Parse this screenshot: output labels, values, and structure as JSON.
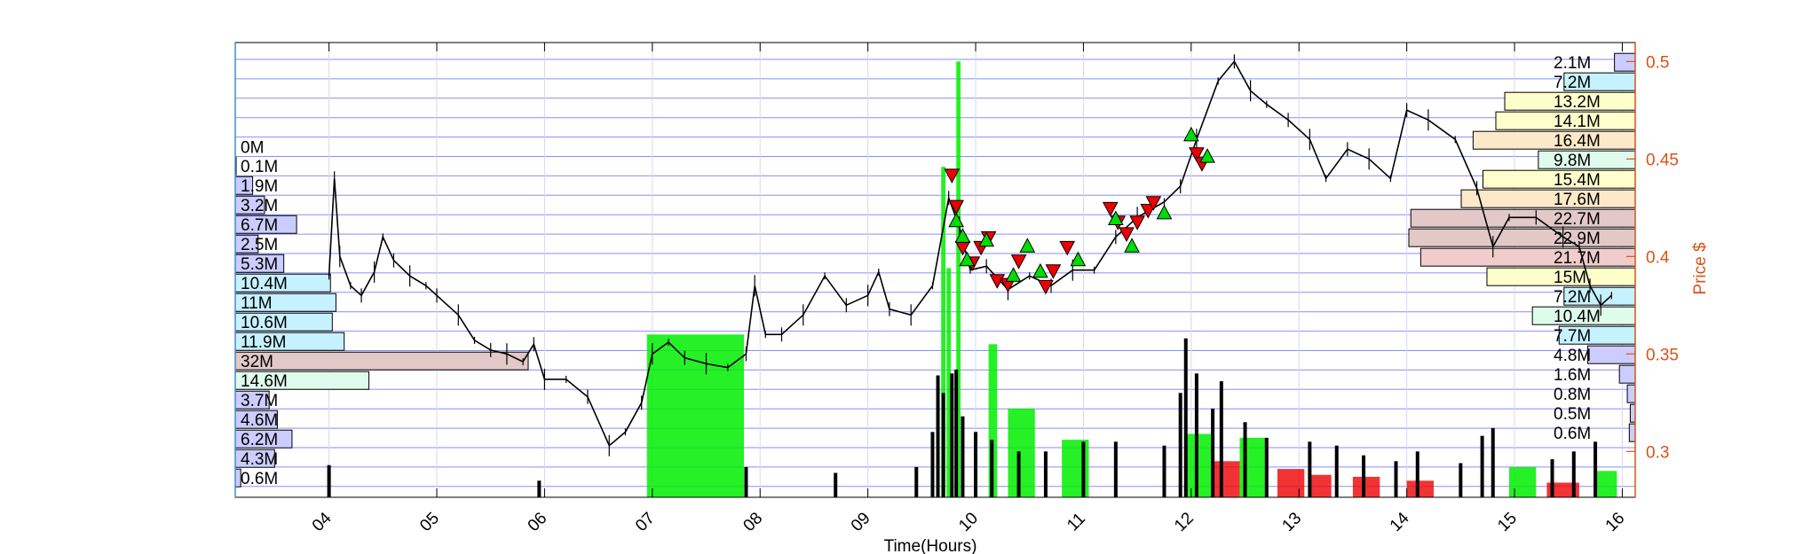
{
  "chart_data": {
    "type": "candlestick",
    "xlabel": "Time(Hours)",
    "ylabel": "Price $",
    "x_ticks": [
      "04",
      "05",
      "06",
      "07",
      "08",
      "09",
      "10",
      "11",
      "12",
      "13",
      "14",
      "15",
      "16"
    ],
    "xlim": [
      3.13,
      16.12
    ],
    "ylim": [
      0.2765,
      0.5097
    ],
    "y_ticks": [
      "0.3",
      "0.35",
      "0.4",
      "0.45",
      "0.5"
    ],
    "grid": "horizontal",
    "colors": {
      "axis_right": "#d95319",
      "grid": "#8b8bff",
      "volume_up": "#00ee00",
      "volume_down": "#ee0000",
      "buy_marker": "#00dd00",
      "sell_marker": "#ee0000"
    },
    "price_path": [
      [
        4.0,
        0.39
      ],
      [
        4.05,
        0.44
      ],
      [
        4.1,
        0.4
      ],
      [
        4.2,
        0.385
      ],
      [
        4.3,
        0.38
      ],
      [
        4.42,
        0.392
      ],
      [
        4.5,
        0.41
      ],
      [
        4.6,
        0.398
      ],
      [
        4.75,
        0.39
      ],
      [
        4.9,
        0.385
      ],
      [
        5.0,
        0.38
      ],
      [
        5.2,
        0.37
      ],
      [
        5.35,
        0.357
      ],
      [
        5.5,
        0.352
      ],
      [
        5.65,
        0.35
      ],
      [
        5.8,
        0.346
      ],
      [
        5.9,
        0.355
      ],
      [
        6.0,
        0.337
      ],
      [
        6.2,
        0.337
      ],
      [
        6.4,
        0.328
      ],
      [
        6.6,
        0.303
      ],
      [
        6.75,
        0.31
      ],
      [
        6.9,
        0.325
      ],
      [
        7.0,
        0.35
      ],
      [
        7.15,
        0.356
      ],
      [
        7.3,
        0.348
      ],
      [
        7.5,
        0.345
      ],
      [
        7.7,
        0.343
      ],
      [
        7.87,
        0.35
      ],
      [
        7.95,
        0.385
      ],
      [
        8.05,
        0.36
      ],
      [
        8.2,
        0.36
      ],
      [
        8.4,
        0.37
      ],
      [
        8.6,
        0.39
      ],
      [
        8.8,
        0.375
      ],
      [
        9.0,
        0.38
      ],
      [
        9.1,
        0.392
      ],
      [
        9.2,
        0.373
      ],
      [
        9.4,
        0.37
      ],
      [
        9.6,
        0.385
      ],
      [
        9.75,
        0.43
      ],
      [
        9.85,
        0.415
      ],
      [
        9.95,
        0.393
      ],
      [
        10.1,
        0.395
      ],
      [
        10.3,
        0.383
      ],
      [
        10.5,
        0.39
      ],
      [
        10.7,
        0.385
      ],
      [
        10.9,
        0.393
      ],
      [
        11.1,
        0.393
      ],
      [
        11.3,
        0.41
      ],
      [
        11.5,
        0.42
      ],
      [
        11.75,
        0.428
      ],
      [
        11.9,
        0.436
      ],
      [
        12.05,
        0.46
      ],
      [
        12.25,
        0.49
      ],
      [
        12.4,
        0.5
      ],
      [
        12.55,
        0.485
      ],
      [
        12.7,
        0.478
      ],
      [
        12.9,
        0.47
      ],
      [
        13.1,
        0.46
      ],
      [
        13.25,
        0.44
      ],
      [
        13.45,
        0.455
      ],
      [
        13.65,
        0.45
      ],
      [
        13.85,
        0.44
      ],
      [
        14.0,
        0.475
      ],
      [
        14.2,
        0.47
      ],
      [
        14.45,
        0.46
      ],
      [
        14.65,
        0.435
      ],
      [
        14.8,
        0.405
      ],
      [
        14.95,
        0.42
      ],
      [
        15.2,
        0.42
      ],
      [
        15.45,
        0.41
      ],
      [
        15.6,
        0.405
      ],
      [
        15.7,
        0.385
      ],
      [
        15.8,
        0.375
      ],
      [
        15.9,
        0.38
      ]
    ],
    "volume_bars": [
      {
        "x": 6.95,
        "x2": 7.85,
        "price": 0.36,
        "dir": "up"
      },
      {
        "x": 9.68,
        "x2": 9.72,
        "price": 0.446,
        "dir": "up"
      },
      {
        "x": 9.73,
        "x2": 9.77,
        "price": 0.394,
        "dir": "up"
      },
      {
        "x": 9.82,
        "x2": 9.86,
        "price": 0.5,
        "dir": "up"
      },
      {
        "x": 10.12,
        "x2": 10.2,
        "price": 0.355,
        "dir": "up"
      },
      {
        "x": 10.3,
        "x2": 10.55,
        "price": 0.322,
        "dir": "up"
      },
      {
        "x": 10.8,
        "x2": 11.05,
        "price": 0.306,
        "dir": "up"
      },
      {
        "x": 11.95,
        "x2": 12.2,
        "price": 0.309,
        "dir": "up"
      },
      {
        "x": 12.2,
        "x2": 12.45,
        "price": 0.295,
        "dir": "down"
      },
      {
        "x": 12.45,
        "x2": 12.7,
        "price": 0.307,
        "dir": "up"
      },
      {
        "x": 12.8,
        "x2": 13.05,
        "price": 0.291,
        "dir": "down"
      },
      {
        "x": 13.1,
        "x2": 13.3,
        "price": 0.288,
        "dir": "down"
      },
      {
        "x": 13.5,
        "x2": 13.75,
        "price": 0.287,
        "dir": "down"
      },
      {
        "x": 14.0,
        "x2": 14.25,
        "price": 0.285,
        "dir": "down"
      },
      {
        "x": 14.95,
        "x2": 15.2,
        "price": 0.292,
        "dir": "up"
      },
      {
        "x": 15.3,
        "x2": 15.6,
        "price": 0.284,
        "dir": "down"
      },
      {
        "x": 15.75,
        "x2": 15.95,
        "price": 0.29,
        "dir": "up"
      }
    ],
    "spikes": [
      [
        4.0,
        0.293
      ],
      [
        5.95,
        0.285
      ],
      [
        7.87,
        0.292
      ],
      [
        8.7,
        0.289
      ],
      [
        9.45,
        0.292
      ],
      [
        9.6,
        0.31
      ],
      [
        9.65,
        0.339
      ],
      [
        9.7,
        0.33
      ],
      [
        9.78,
        0.34
      ],
      [
        9.82,
        0.342
      ],
      [
        9.88,
        0.318
      ],
      [
        10.0,
        0.31
      ],
      [
        10.15,
        0.306
      ],
      [
        10.4,
        0.3
      ],
      [
        10.65,
        0.3
      ],
      [
        11.0,
        0.305
      ],
      [
        11.3,
        0.305
      ],
      [
        11.75,
        0.303
      ],
      [
        11.9,
        0.33
      ],
      [
        11.95,
        0.358
      ],
      [
        12.05,
        0.34
      ],
      [
        12.2,
        0.322
      ],
      [
        12.28,
        0.336
      ],
      [
        12.5,
        0.315
      ],
      [
        12.7,
        0.307
      ],
      [
        13.1,
        0.305
      ],
      [
        13.35,
        0.303
      ],
      [
        13.6,
        0.298
      ],
      [
        13.9,
        0.295
      ],
      [
        14.1,
        0.3
      ],
      [
        14.5,
        0.294
      ],
      [
        14.7,
        0.308
      ],
      [
        14.8,
        0.312
      ],
      [
        15.35,
        0.296
      ],
      [
        15.55,
        0.3
      ],
      [
        15.75,
        0.305
      ]
    ],
    "sell_markers": [
      [
        9.78,
        0.442
      ],
      [
        9.82,
        0.426
      ],
      [
        9.88,
        0.405
      ],
      [
        9.97,
        0.397
      ],
      [
        10.05,
        0.405
      ],
      [
        10.12,
        0.41
      ],
      [
        10.2,
        0.388
      ],
      [
        10.3,
        0.386
      ],
      [
        10.4,
        0.398
      ],
      [
        10.65,
        0.385
      ],
      [
        10.72,
        0.393
      ],
      [
        10.85,
        0.405
      ],
      [
        11.25,
        0.425
      ],
      [
        11.32,
        0.418
      ],
      [
        11.4,
        0.412
      ],
      [
        11.5,
        0.418
      ],
      [
        11.6,
        0.424
      ],
      [
        11.65,
        0.428
      ],
      [
        12.05,
        0.453
      ],
      [
        12.1,
        0.448
      ]
    ],
    "buy_markers": [
      [
        9.82,
        0.418
      ],
      [
        9.88,
        0.41
      ],
      [
        9.92,
        0.398
      ],
      [
        10.1,
        0.408
      ],
      [
        10.35,
        0.39
      ],
      [
        10.48,
        0.405
      ],
      [
        10.6,
        0.392
      ],
      [
        10.95,
        0.398
      ],
      [
        11.3,
        0.419
      ],
      [
        11.45,
        0.405
      ],
      [
        11.75,
        0.422
      ],
      [
        12.0,
        0.462
      ],
      [
        12.15,
        0.451
      ]
    ],
    "volume_profile_left": [
      {
        "label": "0M",
        "value": 0,
        "price": 0.4564,
        "color": "#ccccff"
      },
      {
        "label": "0.1M",
        "value": 0.1,
        "price": 0.4464,
        "color": "#ccccff"
      },
      {
        "label": "1.9M",
        "value": 1.9,
        "price": 0.4364,
        "color": "#ccccff"
      },
      {
        "label": "3.2M",
        "value": 3.2,
        "price": 0.4264,
        "color": "#ccccff"
      },
      {
        "label": "6.7M",
        "value": 6.7,
        "price": 0.4164,
        "color": "#ccccff"
      },
      {
        "label": "2.5M",
        "value": 2.5,
        "price": 0.4064,
        "color": "#ccccff"
      },
      {
        "label": "5.3M",
        "value": 5.3,
        "price": 0.3964,
        "color": "#ccccff"
      },
      {
        "label": "10.4M",
        "value": 10.4,
        "price": 0.3864,
        "color": "#c6f2ff"
      },
      {
        "label": "11M",
        "value": 11,
        "price": 0.3764,
        "color": "#c6f2ff"
      },
      {
        "label": "10.6M",
        "value": 10.6,
        "price": 0.3664,
        "color": "#c6f2ff"
      },
      {
        "label": "11.9M",
        "value": 11.9,
        "price": 0.3564,
        "color": "#c6f2ff"
      },
      {
        "label": "32M",
        "value": 32,
        "price": 0.3464,
        "color": "#e3c8c8"
      },
      {
        "label": "14.6M",
        "value": 14.6,
        "price": 0.3364,
        "color": "#dffbec"
      },
      {
        "label": "3.7M",
        "value": 3.7,
        "price": 0.3264,
        "color": "#ccccff"
      },
      {
        "label": "4.6M",
        "value": 4.6,
        "price": 0.3164,
        "color": "#ccccff"
      },
      {
        "label": "6.2M",
        "value": 6.2,
        "price": 0.3064,
        "color": "#ccccff"
      },
      {
        "label": "4.3M",
        "value": 4.3,
        "price": 0.2964,
        "color": "#ccccff"
      },
      {
        "label": "0.6M",
        "value": 0.6,
        "price": 0.2864,
        "color": "#ccccff"
      }
    ],
    "volume_profile_right": [
      {
        "label": "2.1M",
        "value": 2.1,
        "price": 0.4996,
        "color": "#ccccff"
      },
      {
        "label": "7.2M",
        "value": 7.2,
        "price": 0.4896,
        "color": "#c6f2ff"
      },
      {
        "label": "13.2M",
        "value": 13.2,
        "price": 0.4796,
        "color": "#ffffcc"
      },
      {
        "label": "14.1M",
        "value": 14.1,
        "price": 0.4696,
        "color": "#ffffcc"
      },
      {
        "label": "16.4M",
        "value": 16.4,
        "price": 0.4596,
        "color": "#fbe9c9"
      },
      {
        "label": "9.8M",
        "value": 9.8,
        "price": 0.4496,
        "color": "#dffbec"
      },
      {
        "label": "15.4M",
        "value": 15.4,
        "price": 0.4396,
        "color": "#ffffcc"
      },
      {
        "label": "17.6M",
        "value": 17.6,
        "price": 0.4296,
        "color": "#fbe9c9"
      },
      {
        "label": "22.7M",
        "value": 22.7,
        "price": 0.4196,
        "color": "#e3c8c8"
      },
      {
        "label": "22.9M",
        "value": 22.9,
        "price": 0.4096,
        "color": "#e3c8c8"
      },
      {
        "label": "21.7M",
        "value": 21.7,
        "price": 0.3996,
        "color": "#f0cccc"
      },
      {
        "label": "15M",
        "value": 15,
        "price": 0.3896,
        "color": "#ffffcc"
      },
      {
        "label": "7.2M",
        "value": 7.2,
        "price": 0.3796,
        "color": "#c6f2ff"
      },
      {
        "label": "10.4M",
        "value": 10.4,
        "price": 0.3696,
        "color": "#dffbec"
      },
      {
        "label": "7.7M",
        "value": 7.7,
        "price": 0.3596,
        "color": "#c6f2ff"
      },
      {
        "label": "4.8M",
        "value": 4.8,
        "price": 0.3496,
        "color": "#ccccff"
      },
      {
        "label": "1.6M",
        "value": 1.6,
        "price": 0.3396,
        "color": "#ccccff"
      },
      {
        "label": "0.8M",
        "value": 0.8,
        "price": 0.3296,
        "color": "#ccccff"
      },
      {
        "label": "0.5M",
        "value": 0.5,
        "price": 0.3196,
        "color": "#ccccff"
      },
      {
        "label": "0.6M",
        "value": 0.6,
        "price": 0.3096,
        "color": "#ccccff"
      }
    ]
  }
}
